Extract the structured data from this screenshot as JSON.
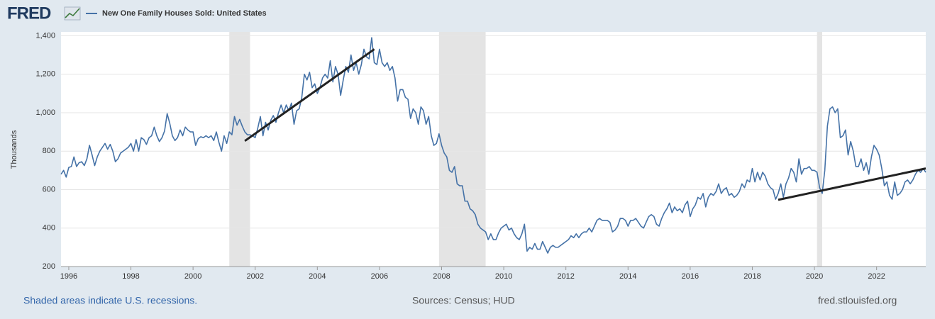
{
  "chart_data": {
    "type": "line",
    "logo": "FRED",
    "y_axis_label": "Thousands",
    "footer_left": "Shaded areas indicate U.S. recessions.",
    "footer_center": "Sources: Census; HUD",
    "footer_right": "fred.stlouisfed.org",
    "xlim": [
      "1995-10",
      "2023-08"
    ],
    "xticks": [
      1996,
      1998,
      2000,
      2002,
      2004,
      2006,
      2008,
      2010,
      2012,
      2014,
      2016,
      2018,
      2020,
      2022
    ],
    "ylim": [
      200,
      1420
    ],
    "yticks": [
      200,
      400,
      600,
      800,
      {
        "value": 1000,
        "label": "1,000"
      },
      {
        "value": 1200,
        "label": "1,200"
      },
      {
        "value": 1400,
        "label": "1,400"
      }
    ],
    "grid": true,
    "recessions": [
      {
        "start": "2001-03",
        "end": "2001-11"
      },
      {
        "start": "2007-12",
        "end": "2009-06"
      },
      {
        "start": "2020-02",
        "end": "2020-04"
      }
    ],
    "recession_color": "#e4e4e4",
    "trend_lines": [
      {
        "color": "#222222",
        "x": [
          "2001-09",
          "2005-11"
        ],
        "values": [
          853,
          1330
        ]
      },
      {
        "color": "#222222",
        "x": [
          "2018-11",
          "2023-08"
        ],
        "values": [
          547,
          710
        ]
      }
    ],
    "x": [
      "1995-10",
      "1995-11",
      "1995-12",
      "1996-01",
      "1996-02",
      "1996-03",
      "1996-04",
      "1996-05",
      "1996-06",
      "1996-07",
      "1996-08",
      "1996-09",
      "1996-10",
      "1996-11",
      "1996-12",
      "1997-01",
      "1997-02",
      "1997-03",
      "1997-04",
      "1997-05",
      "1997-06",
      "1997-07",
      "1997-08",
      "1997-09",
      "1997-10",
      "1997-11",
      "1997-12",
      "1998-01",
      "1998-02",
      "1998-03",
      "1998-04",
      "1998-05",
      "1998-06",
      "1998-07",
      "1998-08",
      "1998-09",
      "1998-10",
      "1998-11",
      "1998-12",
      "1999-01",
      "1999-02",
      "1999-03",
      "1999-04",
      "1999-05",
      "1999-06",
      "1999-07",
      "1999-08",
      "1999-09",
      "1999-10",
      "1999-11",
      "1999-12",
      "2000-01",
      "2000-02",
      "2000-03",
      "2000-04",
      "2000-05",
      "2000-06",
      "2000-07",
      "2000-08",
      "2000-09",
      "2000-10",
      "2000-11",
      "2000-12",
      "2001-01",
      "2001-02",
      "2001-03",
      "2001-04",
      "2001-05",
      "2001-06",
      "2001-07",
      "2001-08",
      "2001-09",
      "2001-10",
      "2001-11",
      "2001-12",
      "2002-01",
      "2002-02",
      "2002-03",
      "2002-04",
      "2002-05",
      "2002-06",
      "2002-07",
      "2002-08",
      "2002-09",
      "2002-10",
      "2002-11",
      "2002-12",
      "2003-01",
      "2003-02",
      "2003-03",
      "2003-04",
      "2003-05",
      "2003-06",
      "2003-07",
      "2003-08",
      "2003-09",
      "2003-10",
      "2003-11",
      "2003-12",
      "2004-01",
      "2004-02",
      "2004-03",
      "2004-04",
      "2004-05",
      "2004-06",
      "2004-07",
      "2004-08",
      "2004-09",
      "2004-10",
      "2004-11",
      "2004-12",
      "2005-01",
      "2005-02",
      "2005-03",
      "2005-04",
      "2005-05",
      "2005-06",
      "2005-07",
      "2005-08",
      "2005-09",
      "2005-10",
      "2005-11",
      "2005-12",
      "2006-01",
      "2006-02",
      "2006-03",
      "2006-04",
      "2006-05",
      "2006-06",
      "2006-07",
      "2006-08",
      "2006-09",
      "2006-10",
      "2006-11",
      "2006-12",
      "2007-01",
      "2007-02",
      "2007-03",
      "2007-04",
      "2007-05",
      "2007-06",
      "2007-07",
      "2007-08",
      "2007-09",
      "2007-10",
      "2007-11",
      "2007-12",
      "2008-01",
      "2008-02",
      "2008-03",
      "2008-04",
      "2008-05",
      "2008-06",
      "2008-07",
      "2008-08",
      "2008-09",
      "2008-10",
      "2008-11",
      "2008-12",
      "2009-01",
      "2009-02",
      "2009-03",
      "2009-04",
      "2009-05",
      "2009-06",
      "2009-07",
      "2009-08",
      "2009-09",
      "2009-10",
      "2009-11",
      "2009-12",
      "2010-01",
      "2010-02",
      "2010-03",
      "2010-04",
      "2010-05",
      "2010-06",
      "2010-07",
      "2010-08",
      "2010-09",
      "2010-10",
      "2010-11",
      "2010-12",
      "2011-01",
      "2011-02",
      "2011-03",
      "2011-04",
      "2011-05",
      "2011-06",
      "2011-07",
      "2011-08",
      "2011-09",
      "2011-10",
      "2011-11",
      "2011-12",
      "2012-01",
      "2012-02",
      "2012-03",
      "2012-04",
      "2012-05",
      "2012-06",
      "2012-07",
      "2012-08",
      "2012-09",
      "2012-10",
      "2012-11",
      "2012-12",
      "2013-01",
      "2013-02",
      "2013-03",
      "2013-04",
      "2013-05",
      "2013-06",
      "2013-07",
      "2013-08",
      "2013-09",
      "2013-10",
      "2013-11",
      "2013-12",
      "2014-01",
      "2014-02",
      "2014-03",
      "2014-04",
      "2014-05",
      "2014-06",
      "2014-07",
      "2014-08",
      "2014-09",
      "2014-10",
      "2014-11",
      "2014-12",
      "2015-01",
      "2015-02",
      "2015-03",
      "2015-04",
      "2015-05",
      "2015-06",
      "2015-07",
      "2015-08",
      "2015-09",
      "2015-10",
      "2015-11",
      "2015-12",
      "2016-01",
      "2016-02",
      "2016-03",
      "2016-04",
      "2016-05",
      "2016-06",
      "2016-07",
      "2016-08",
      "2016-09",
      "2016-10",
      "2016-11",
      "2016-12",
      "2017-01",
      "2017-02",
      "2017-03",
      "2017-04",
      "2017-05",
      "2017-06",
      "2017-07",
      "2017-08",
      "2017-09",
      "2017-10",
      "2017-11",
      "2017-12",
      "2018-01",
      "2018-02",
      "2018-03",
      "2018-04",
      "2018-05",
      "2018-06",
      "2018-07",
      "2018-08",
      "2018-09",
      "2018-10",
      "2018-11",
      "2018-12",
      "2019-01",
      "2019-02",
      "2019-03",
      "2019-04",
      "2019-05",
      "2019-06",
      "2019-07",
      "2019-08",
      "2019-09",
      "2019-10",
      "2019-11",
      "2019-12",
      "2020-01",
      "2020-02",
      "2020-03",
      "2020-04",
      "2020-05",
      "2020-06",
      "2020-07",
      "2020-08",
      "2020-09",
      "2020-10",
      "2020-11",
      "2020-12",
      "2021-01",
      "2021-02",
      "2021-03",
      "2021-04",
      "2021-05",
      "2021-06",
      "2021-07",
      "2021-08",
      "2021-09",
      "2021-10",
      "2021-11",
      "2021-12",
      "2022-01",
      "2022-02",
      "2022-03",
      "2022-04",
      "2022-05",
      "2022-06",
      "2022-07",
      "2022-08",
      "2022-09",
      "2022-10",
      "2022-11",
      "2022-12",
      "2023-01",
      "2023-02",
      "2023-03",
      "2023-04",
      "2023-05",
      "2023-06",
      "2023-07",
      "2023-08"
    ],
    "series": [
      {
        "name": "New One Family Houses Sold: United States",
        "color": "#4572a7",
        "values": [
          680,
          700,
          665,
          715,
          720,
          770,
          720,
          740,
          745,
          725,
          760,
          830,
          780,
          725,
          770,
          800,
          820,
          840,
          810,
          835,
          800,
          745,
          760,
          790,
          800,
          810,
          820,
          840,
          800,
          860,
          800,
          870,
          860,
          835,
          870,
          880,
          925,
          880,
          850,
          870,
          905,
          995,
          945,
          880,
          855,
          870,
          910,
          880,
          925,
          910,
          900,
          900,
          830,
          865,
          875,
          870,
          880,
          870,
          880,
          855,
          900,
          845,
          800,
          880,
          840,
          900,
          885,
          980,
          935,
          965,
          930,
          900,
          885,
          885,
          880,
          870,
          920,
          980,
          880,
          950,
          910,
          960,
          985,
          950,
          1000,
          1040,
          1000,
          1040,
          1010,
          1050,
          940,
          1010,
          1020,
          1080,
          1200,
          1170,
          1210,
          1130,
          1150,
          1100,
          1130,
          1180,
          1200,
          1180,
          1270,
          1160,
          1240,
          1200,
          1090,
          1170,
          1240,
          1210,
          1300,
          1220,
          1260,
          1200,
          1250,
          1330,
          1290,
          1280,
          1390,
          1260,
          1250,
          1330,
          1260,
          1240,
          1260,
          1220,
          1240,
          1180,
          1060,
          1120,
          1120,
          1080,
          1070,
          970,
          1020,
          1000,
          940,
          1030,
          1010,
          940,
          980,
          880,
          830,
          840,
          890,
          830,
          790,
          770,
          700,
          690,
          720,
          630,
          620,
          620,
          540,
          540,
          500,
          490,
          470,
          420,
          400,
          390,
          380,
          340,
          370,
          340,
          340,
          375,
          400,
          410,
          420,
          390,
          400,
          370,
          350,
          340,
          370,
          420,
          280,
          300,
          290,
          320,
          290,
          290,
          330,
          300,
          270,
          300,
          310,
          300,
          300,
          310,
          320,
          330,
          340,
          360,
          350,
          370,
          350,
          370,
          380,
          380,
          400,
          380,
          410,
          440,
          450,
          440,
          440,
          440,
          430,
          380,
          390,
          410,
          450,
          450,
          440,
          410,
          440,
          440,
          450,
          430,
          410,
          400,
          430,
          460,
          470,
          460,
          420,
          410,
          450,
          480,
          500,
          530,
          480,
          510,
          490,
          500,
          480,
          520,
          540,
          460,
          500,
          520,
          560,
          550,
          580,
          510,
          560,
          580,
          570,
          590,
          630,
          580,
          600,
          610,
          570,
          580,
          560,
          570,
          590,
          630,
          610,
          650,
          640,
          710,
          640,
          690,
          650,
          690,
          670,
          630,
          610,
          600,
          550,
          580,
          630,
          560,
          630,
          660,
          710,
          690,
          640,
          760,
          680,
          710,
          710,
          720,
          700,
          700,
          690,
          610,
          580,
          700,
          930,
          1020,
          1030,
          1000,
          1020,
          870,
          880,
          910,
          780,
          850,
          800,
          720,
          720,
          760,
          700,
          740,
          680,
          770,
          830,
          810,
          780,
          710,
          620,
          640,
          570,
          550,
          640,
          570,
          580,
          600,
          640,
          650,
          630,
          650,
          680,
          700,
          690,
          710,
          690
        ]
      }
    ]
  }
}
